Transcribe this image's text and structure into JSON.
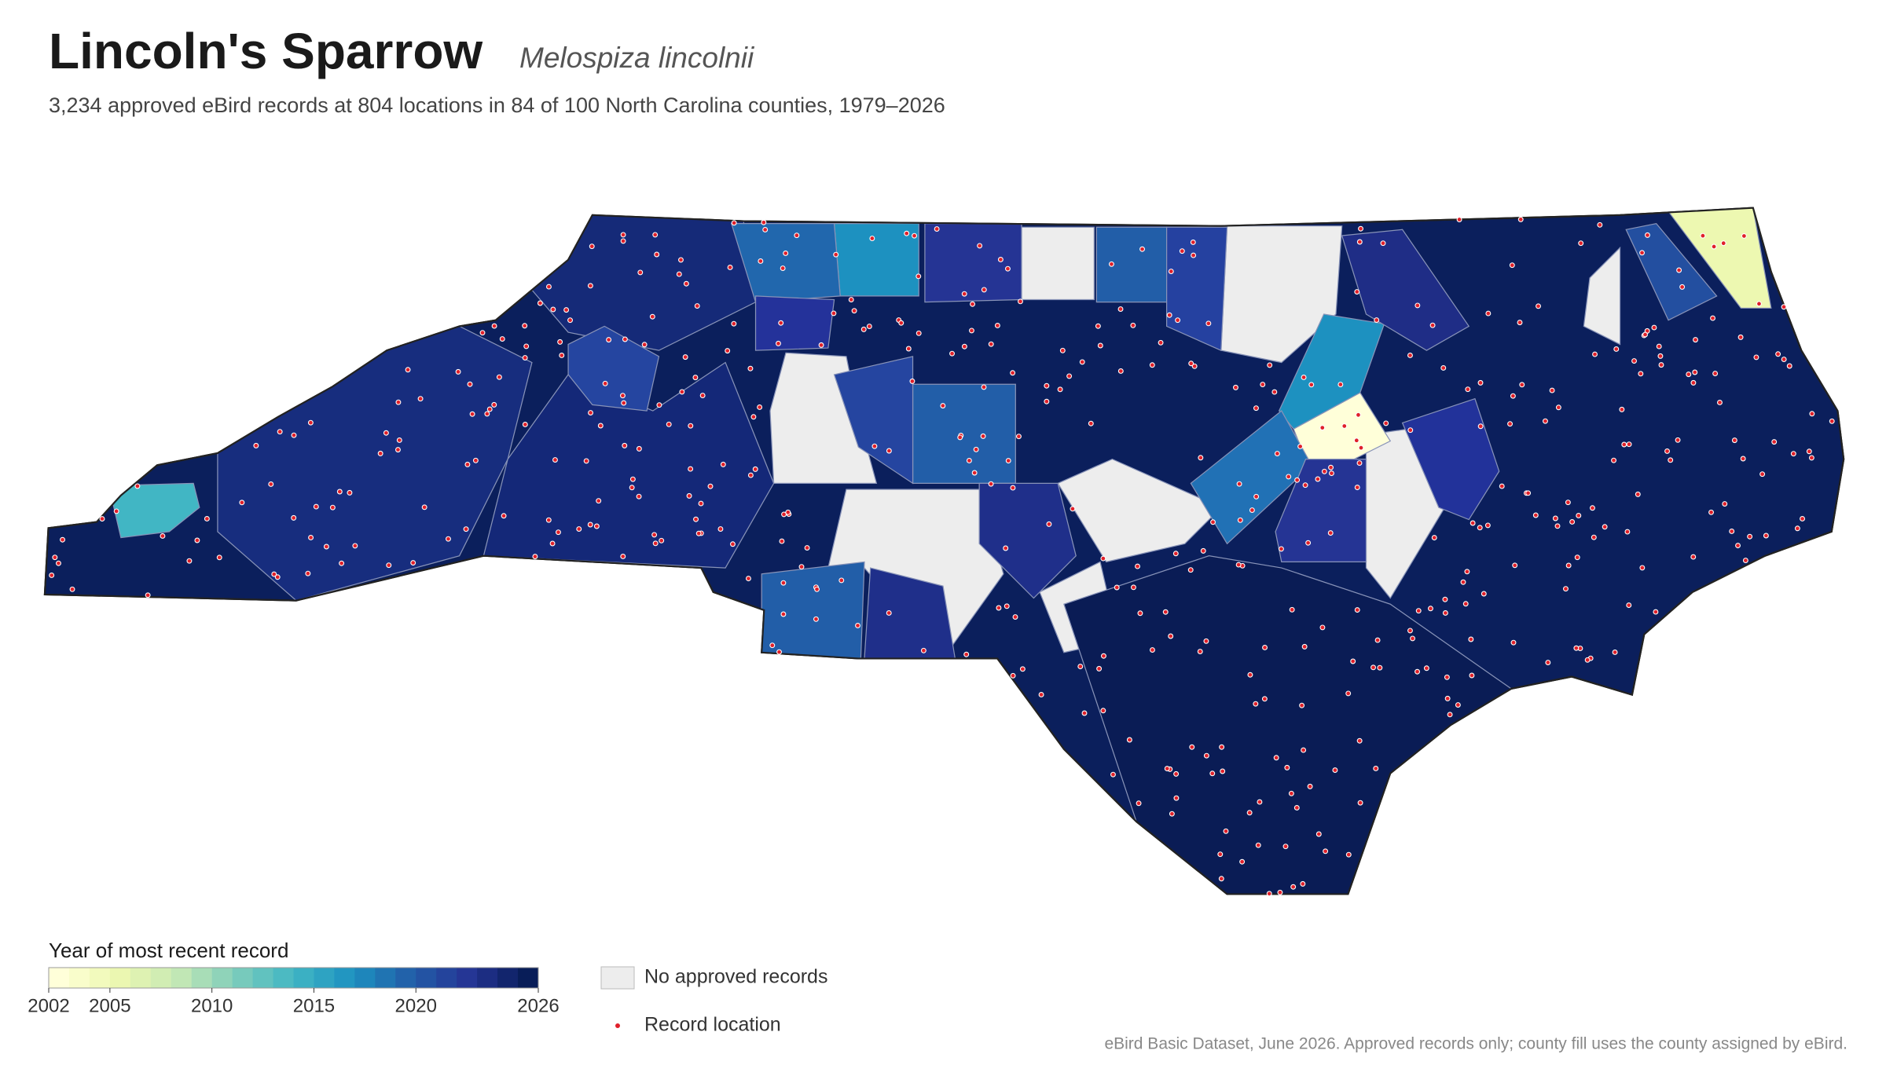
{
  "header": {
    "title": "Lincoln's Sparrow",
    "scientific_name": "Melospiza lincolnii",
    "subtitle": "3,234 approved eBird records at 804 locations in 84 of 100 North Carolina counties, 1979–2026"
  },
  "legend": {
    "title": "Year of most recent record",
    "lim": [
      2002,
      2026
    ],
    "ticks": [
      2002,
      2005,
      2010,
      2015,
      2020,
      2026
    ],
    "no_records": "No approved records",
    "record_location": "Record location"
  },
  "footnote": "eBird Basic Dataset, June 2026. Approved records only; county fill uses the county assigned by eBird."
}
